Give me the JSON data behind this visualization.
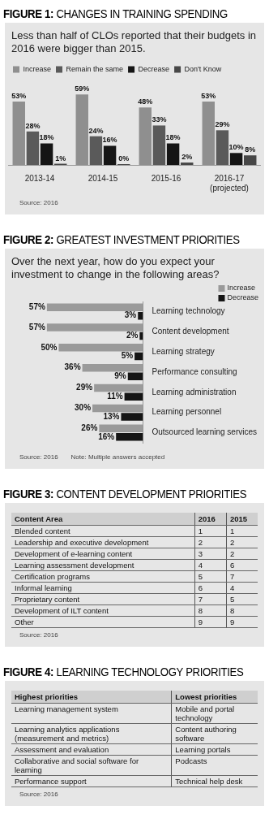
{
  "chart_data": [
    {
      "type": "bar",
      "title": "FIGURE 1: CHANGES IN TRAINING SPENDING",
      "subtitle": "Less than half of CLOs reported that their budgets in 2016 were bigger than 2015.",
      "categories": [
        "2013-14",
        "2014-15",
        "2015-16",
        "2016-17 (projected)"
      ],
      "legend": "top",
      "tick_labels": "x",
      "series": [
        {
          "name": "Increase",
          "color": "#8f8f8f",
          "values": [
            53,
            59,
            48,
            53
          ],
          "value_labels": [
            "53%",
            "59%",
            "48%",
            "53%"
          ]
        },
        {
          "name": "Remain the same",
          "color": "#5a5a5a",
          "values": [
            28,
            24,
            33,
            29
          ],
          "value_labels": [
            "28%",
            "24%",
            "33%",
            "29%"
          ]
        },
        {
          "name": "Decrease",
          "color": "#151515",
          "values": [
            18,
            16,
            18,
            10
          ],
          "value_labels": [
            "18%",
            "16%",
            "18%",
            "10%"
          ]
        },
        {
          "name": "Don't Know",
          "color": "#474747",
          "values": [
            1,
            0,
            2,
            8
          ],
          "value_labels": [
            "1%",
            "0%",
            "2%",
            "8%"
          ]
        }
      ],
      "annotations": [
        "Source: 2016"
      ]
    },
    {
      "type": "bar",
      "orientation": "horizontal",
      "title": "FIGURE 2: GREATEST INVESTMENT PRIORITIES",
      "subtitle": "Over the next year, how do you expect your investment to change in the following areas?",
      "categories": [
        "Learning technology",
        "Content development",
        "Learning strategy",
        "Performance consulting",
        "Learning administration",
        "Learning personnel",
        "Outsourced learning services"
      ],
      "legend": "right",
      "tick_labels": "y",
      "series": [
        {
          "name": "Increase",
          "color": "#9a9a9a",
          "values": [
            57,
            57,
            50,
            36,
            29,
            30,
            26
          ],
          "value_labels": [
            "57%",
            "57%",
            "50%",
            "36%",
            "29%",
            "30%",
            "26%"
          ]
        },
        {
          "name": "Decrease",
          "color": "#151515",
          "values": [
            3,
            2,
            5,
            9,
            11,
            13,
            16
          ],
          "value_labels": [
            "3%",
            "2%",
            "5%",
            "9%",
            "11%",
            "13%",
            "16%"
          ]
        }
      ],
      "annotations": [
        "Source: 2016",
        "Note: Multiple answers accepted"
      ]
    },
    {
      "type": "heatmap",
      "title": "FIGURE 3: CONTENT DEVELOPMENT PRIORITIES",
      "ylabel": "Content Area",
      "categories": [
        "2016",
        "2015"
      ],
      "y_categories": [
        "Blended content",
        "Leadership and executive development",
        "Development of e-learning content",
        "Learning assessment development",
        "Certification programs",
        "Informal learning",
        "Proprietary content",
        "Development of ILT content",
        "Other"
      ],
      "cells": [
        [
          1,
          1
        ],
        [
          2,
          2
        ],
        [
          3,
          2
        ],
        [
          4,
          6
        ],
        [
          5,
          7
        ],
        [
          6,
          4
        ],
        [
          7,
          5
        ],
        [
          8,
          8
        ],
        [
          9,
          9
        ]
      ],
      "data_labels": true,
      "annotations": [
        "Source: 2016"
      ]
    },
    {
      "type": "other",
      "title": "FIGURE 4: LEARNING TECHNOLOGY PRIORITIES",
      "categories": [
        "Highest priorities",
        "Lowest priorities"
      ],
      "cell_labels": [
        [
          "Learning management system",
          "Mobile and portal technology"
        ],
        [
          "Learning analytics applications (measurement and metrics)",
          "Content authoring software"
        ],
        [
          "Assessment and evaluation",
          "Learning portals"
        ],
        [
          "Collaborative and social software for learning",
          "Podcasts"
        ],
        [
          "Performance support",
          "Technical help desk"
        ]
      ],
      "annotations": [
        "Source: 2016"
      ]
    }
  ]
}
